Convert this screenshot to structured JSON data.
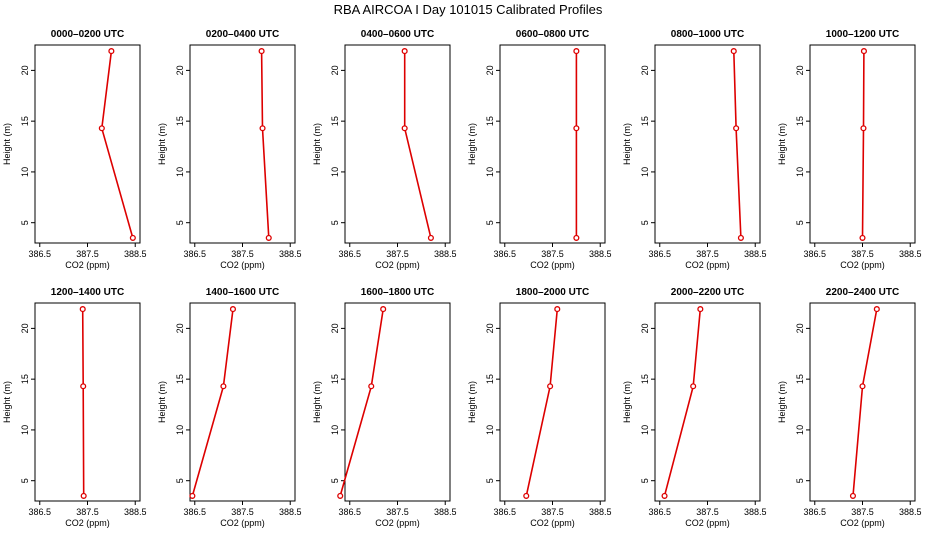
{
  "title": "RBA AIRCOA I  Day 101015  Calibrated Profiles",
  "colors": {
    "series": "#dd0000",
    "axis": "#000000"
  },
  "chart_data": [
    {
      "type": "line",
      "title": "0000–0200 UTC",
      "xlabel": "CO2 (ppm)",
      "ylabel": "Height (m)",
      "xlim": [
        386.4,
        388.6
      ],
      "ylim": [
        3,
        22.5
      ],
      "xticks": [
        "386.5",
        "387.5",
        "388.5"
      ],
      "yticks": [
        "5",
        "10",
        "15",
        "20"
      ],
      "grid": false,
      "x": [
        388.45,
        387.8,
        388.0
      ],
      "y": [
        3.5,
        14.3,
        21.9
      ]
    },
    {
      "type": "line",
      "title": "0200–0400 UTC",
      "xlabel": "CO2 (ppm)",
      "ylabel": "Height (m)",
      "xlim": [
        386.4,
        388.6
      ],
      "ylim": [
        3,
        22.5
      ],
      "xticks": [
        "386.5",
        "387.5",
        "388.5"
      ],
      "yticks": [
        "5",
        "10",
        "15",
        "20"
      ],
      "grid": false,
      "x": [
        388.05,
        387.92,
        387.9
      ],
      "y": [
        3.5,
        14.3,
        21.9
      ]
    },
    {
      "type": "line",
      "title": "0400–0600 UTC",
      "xlabel": "CO2 (ppm)",
      "ylabel": "Height (m)",
      "xlim": [
        386.4,
        388.6
      ],
      "ylim": [
        3,
        22.5
      ],
      "xticks": [
        "386.5",
        "387.5",
        "388.5"
      ],
      "yticks": [
        "5",
        "10",
        "15",
        "20"
      ],
      "grid": false,
      "x": [
        388.2,
        387.65,
        387.65
      ],
      "y": [
        3.5,
        14.3,
        21.9
      ]
    },
    {
      "type": "line",
      "title": "0600–0800 UTC",
      "xlabel": "CO2 (ppm)",
      "ylabel": "Height (m)",
      "xlim": [
        386.4,
        388.6
      ],
      "ylim": [
        3,
        22.5
      ],
      "xticks": [
        "386.5",
        "387.5",
        "388.5"
      ],
      "yticks": [
        "5",
        "10",
        "15",
        "20"
      ],
      "grid": false,
      "x": [
        388.0,
        388.0,
        388.0
      ],
      "y": [
        3.5,
        14.3,
        21.9
      ]
    },
    {
      "type": "line",
      "title": "0800–1000 UTC",
      "xlabel": "CO2 (ppm)",
      "ylabel": "Height (m)",
      "xlim": [
        386.4,
        388.6
      ],
      "ylim": [
        3,
        22.5
      ],
      "xticks": [
        "386.5",
        "387.5",
        "388.5"
      ],
      "yticks": [
        "5",
        "10",
        "15",
        "20"
      ],
      "grid": false,
      "x": [
        388.2,
        388.1,
        388.05
      ],
      "y": [
        3.5,
        14.3,
        21.9
      ]
    },
    {
      "type": "line",
      "title": "1000–1200 UTC",
      "xlabel": "CO2 (ppm)",
      "ylabel": "Height (m)",
      "xlim": [
        386.4,
        388.6
      ],
      "ylim": [
        3,
        22.5
      ],
      "xticks": [
        "386.5",
        "387.5",
        "388.5"
      ],
      "yticks": [
        "5",
        "10",
        "15",
        "20"
      ],
      "grid": false,
      "x": [
        387.5,
        387.52,
        387.53
      ],
      "y": [
        3.5,
        14.3,
        21.9
      ]
    },
    {
      "type": "line",
      "title": "1200–1400 UTC",
      "xlabel": "CO2 (ppm)",
      "ylabel": "Height (m)",
      "xlim": [
        386.4,
        388.6
      ],
      "ylim": [
        3,
        22.5
      ],
      "xticks": [
        "386.5",
        "387.5",
        "388.5"
      ],
      "yticks": [
        "5",
        "10",
        "15",
        "20"
      ],
      "grid": false,
      "x": [
        387.42,
        387.41,
        387.4
      ],
      "y": [
        3.5,
        14.3,
        21.9
      ]
    },
    {
      "type": "line",
      "title": "1400–1600 UTC",
      "xlabel": "CO2 (ppm)",
      "ylabel": "Height (m)",
      "xlim": [
        386.4,
        388.6
      ],
      "ylim": [
        3,
        22.5
      ],
      "xticks": [
        "386.5",
        "387.5",
        "388.5"
      ],
      "yticks": [
        "5",
        "10",
        "15",
        "20"
      ],
      "grid": false,
      "x": [
        386.45,
        387.1,
        387.3
      ],
      "y": [
        3.5,
        14.3,
        21.9
      ]
    },
    {
      "type": "line",
      "title": "1600–1800 UTC",
      "xlabel": "CO2 (ppm)",
      "ylabel": "Height (m)",
      "xlim": [
        386.4,
        388.6
      ],
      "ylim": [
        3,
        22.5
      ],
      "xticks": [
        "386.5",
        "387.5",
        "388.5"
      ],
      "yticks": [
        "5",
        "10",
        "15",
        "20"
      ],
      "grid": false,
      "x": [
        386.3,
        386.95,
        387.2
      ],
      "y": [
        3.5,
        14.3,
        21.9
      ]
    },
    {
      "type": "line",
      "title": "1800–2000 UTC",
      "xlabel": "CO2 (ppm)",
      "ylabel": "Height (m)",
      "xlim": [
        386.4,
        388.6
      ],
      "ylim": [
        3,
        22.5
      ],
      "xticks": [
        "386.5",
        "387.5",
        "388.5"
      ],
      "yticks": [
        "5",
        "10",
        "15",
        "20"
      ],
      "grid": false,
      "x": [
        386.95,
        387.45,
        387.6
      ],
      "y": [
        3.5,
        14.3,
        21.9
      ]
    },
    {
      "type": "line",
      "title": "2000–2200 UTC",
      "xlabel": "CO2 (ppm)",
      "ylabel": "Height (m)",
      "xlim": [
        386.4,
        388.6
      ],
      "ylim": [
        3,
        22.5
      ],
      "xticks": [
        "386.5",
        "387.5",
        "388.5"
      ],
      "yticks": [
        "5",
        "10",
        "15",
        "20"
      ],
      "grid": false,
      "x": [
        386.6,
        387.2,
        387.35
      ],
      "y": [
        3.5,
        14.3,
        21.9
      ]
    },
    {
      "type": "line",
      "title": "2200–2400 UTC",
      "xlabel": "CO2 (ppm)",
      "ylabel": "Height (m)",
      "xlim": [
        386.4,
        388.6
      ],
      "ylim": [
        3,
        22.5
      ],
      "xticks": [
        "386.5",
        "387.5",
        "388.5"
      ],
      "yticks": [
        "5",
        "10",
        "15",
        "20"
      ],
      "grid": false,
      "x": [
        387.3,
        387.5,
        387.8
      ],
      "y": [
        3.5,
        14.3,
        21.9
      ]
    }
  ]
}
